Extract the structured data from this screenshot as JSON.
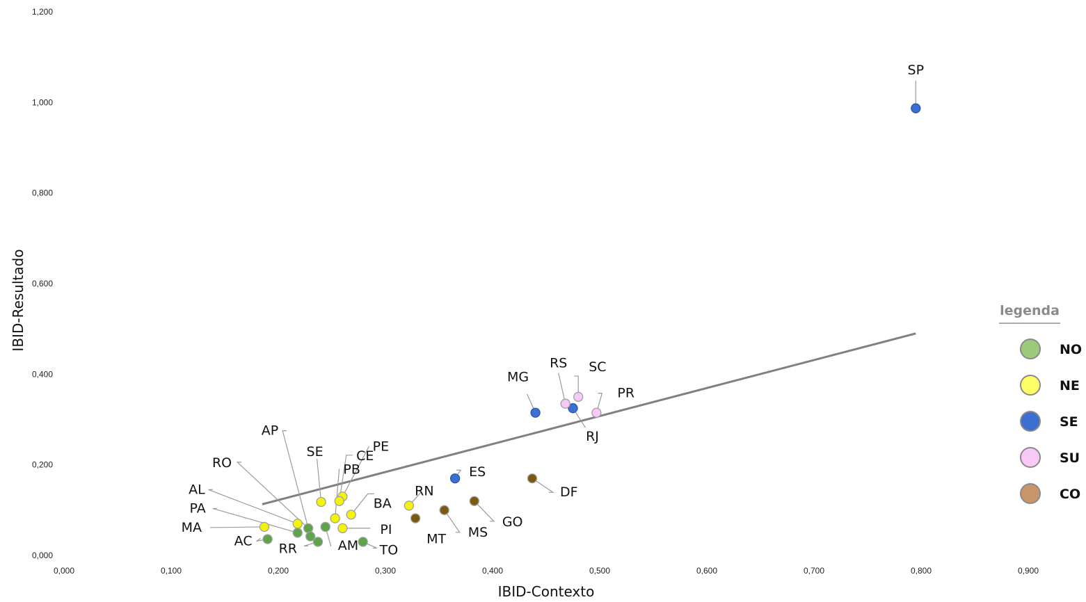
{
  "chart_data": {
    "type": "scatter",
    "xlabel": "IBID-Contexto",
    "ylabel": "IBID-Resultado",
    "xlim": [
      0,
      0.9
    ],
    "ylim": [
      0,
      1.2
    ],
    "x_ticks": [
      "0,000",
      "0,100",
      "0,200",
      "0,300",
      "0,400",
      "0,500",
      "0,600",
      "0,700",
      "0,800",
      "0,900"
    ],
    "y_ticks": [
      "0,000",
      "0,200",
      "0,400",
      "0,600",
      "0,800",
      "1,000",
      "1,200"
    ],
    "grid": false,
    "legend": {
      "title": "legenda",
      "position": "right",
      "items": [
        {
          "name": "NO",
          "color": "#9dc97a"
        },
        {
          "name": "NE",
          "color": "#ffff66"
        },
        {
          "name": "SE",
          "color": "#3b6fd0"
        },
        {
          "name": "SU",
          "color": "#f8c8f6"
        },
        {
          "name": "CO",
          "color": "#c8956a"
        }
      ]
    },
    "region_colors": {
      "NO": "#5fa34a",
      "NE": "#f4f40a",
      "SE": "#3b6fd0",
      "SU": "#f8c8f6",
      "CO": "#7a5a10"
    },
    "trendline": {
      "x": [
        0.185,
        0.795
      ],
      "y": [
        0.113,
        0.49
      ],
      "color": "#808080"
    },
    "points": [
      {
        "label": "SP",
        "region": "SE",
        "x": 0.795,
        "y": 0.987
      },
      {
        "label": "MG",
        "region": "SE",
        "x": 0.44,
        "y": 0.315
      },
      {
        "label": "RJ",
        "region": "SE",
        "x": 0.475,
        "y": 0.325
      },
      {
        "label": "ES",
        "region": "SE",
        "x": 0.365,
        "y": 0.17
      },
      {
        "label": "RS",
        "region": "SU",
        "x": 0.468,
        "y": 0.335
      },
      {
        "label": "SC",
        "region": "SU",
        "x": 0.48,
        "y": 0.35
      },
      {
        "label": "PR",
        "region": "SU",
        "x": 0.497,
        "y": 0.315
      },
      {
        "label": "DF",
        "region": "CO",
        "x": 0.437,
        "y": 0.17
      },
      {
        "label": "GO",
        "region": "CO",
        "x": 0.383,
        "y": 0.12
      },
      {
        "label": "MS",
        "region": "CO",
        "x": 0.355,
        "y": 0.1
      },
      {
        "label": "MT",
        "region": "CO",
        "x": 0.328,
        "y": 0.082
      },
      {
        "label": "RN",
        "region": "NE",
        "x": 0.322,
        "y": 0.11
      },
      {
        "label": "BA",
        "region": "NE",
        "x": 0.268,
        "y": 0.09
      },
      {
        "label": "PI",
        "region": "NE",
        "x": 0.26,
        "y": 0.06
      },
      {
        "label": "PE",
        "region": "NE",
        "x": 0.26,
        "y": 0.13
      },
      {
        "label": "CE",
        "region": "NE",
        "x": 0.257,
        "y": 0.12
      },
      {
        "label": "PB",
        "region": "NE",
        "x": 0.253,
        "y": 0.082
      },
      {
        "label": "SE",
        "region": "NE",
        "x": 0.24,
        "y": 0.118
      },
      {
        "label": "AL",
        "region": "NE",
        "x": 0.218,
        "y": 0.07
      },
      {
        "label": "MA",
        "region": "NE",
        "x": 0.187,
        "y": 0.063
      },
      {
        "label": "AC",
        "region": "NO",
        "x": 0.19,
        "y": 0.036
      },
      {
        "label": "PA",
        "region": "NO",
        "x": 0.218,
        "y": 0.05
      },
      {
        "label": "RO",
        "region": "NO",
        "x": 0.228,
        "y": 0.06
      },
      {
        "label": "AP",
        "region": "NO",
        "x": 0.23,
        "y": 0.042
      },
      {
        "label": "RR",
        "region": "NO",
        "x": 0.237,
        "y": 0.03
      },
      {
        "label": "AM",
        "region": "NO",
        "x": 0.244,
        "y": 0.063
      },
      {
        "label": "TO",
        "region": "NO",
        "x": 0.279,
        "y": 0.03
      }
    ]
  }
}
